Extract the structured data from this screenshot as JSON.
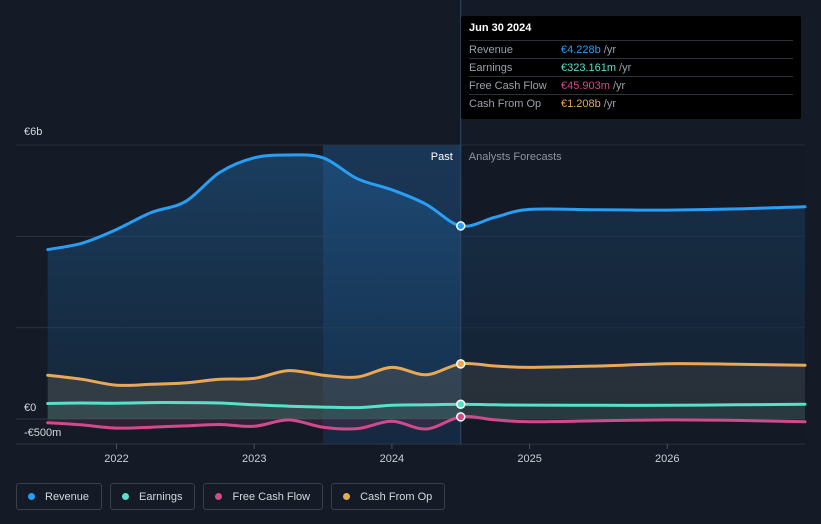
{
  "chart_data": {
    "type": "area",
    "x_ticks": [
      "2022",
      "2023",
      "2024",
      "2025",
      "2026"
    ],
    "y_tick_labels": {
      "top": "€6b",
      "zero": "€0",
      "bottom": "-€500m"
    },
    "ylim": [
      -500,
      6000
    ],
    "unit": "€m",
    "past_label": "Past",
    "forecast_label": "Analysts Forecasts",
    "divider_date": 2024.5,
    "highlight_start": 2023.5,
    "series": [
      {
        "name": "Revenue",
        "color": "#2a9df4",
        "points": [
          [
            2021.5,
            3710
          ],
          [
            2021.75,
            3850
          ],
          [
            2022.0,
            4150
          ],
          [
            2022.25,
            4520
          ],
          [
            2022.5,
            4760
          ],
          [
            2022.75,
            5400
          ],
          [
            2023.0,
            5720
          ],
          [
            2023.25,
            5780
          ],
          [
            2023.5,
            5720
          ],
          [
            2023.75,
            5260
          ],
          [
            2024.0,
            5020
          ],
          [
            2024.25,
            4700
          ],
          [
            2024.5,
            4228
          ],
          [
            2024.75,
            4420
          ],
          [
            2025.0,
            4590
          ],
          [
            2025.5,
            4580
          ],
          [
            2026.0,
            4575
          ],
          [
            2026.5,
            4600
          ],
          [
            2027.0,
            4650
          ]
        ]
      },
      {
        "name": "Cash From Op",
        "color": "#e8a855",
        "points": [
          [
            2021.5,
            960
          ],
          [
            2021.75,
            870
          ],
          [
            2022.0,
            740
          ],
          [
            2022.25,
            760
          ],
          [
            2022.5,
            790
          ],
          [
            2022.75,
            870
          ],
          [
            2023.0,
            890
          ],
          [
            2023.25,
            1060
          ],
          [
            2023.5,
            960
          ],
          [
            2023.75,
            920
          ],
          [
            2024.0,
            1130
          ],
          [
            2024.25,
            970
          ],
          [
            2024.5,
            1208
          ],
          [
            2024.75,
            1160
          ],
          [
            2025.0,
            1130
          ],
          [
            2025.5,
            1160
          ],
          [
            2026.0,
            1210
          ],
          [
            2026.5,
            1200
          ],
          [
            2027.0,
            1175
          ]
        ]
      },
      {
        "name": "Earnings",
        "color": "#58e1c8",
        "points": [
          [
            2021.5,
            340
          ],
          [
            2021.75,
            350
          ],
          [
            2022.0,
            345
          ],
          [
            2022.25,
            360
          ],
          [
            2022.5,
            360
          ],
          [
            2022.75,
            350
          ],
          [
            2023.0,
            310
          ],
          [
            2023.25,
            280
          ],
          [
            2023.5,
            260
          ],
          [
            2023.75,
            250
          ],
          [
            2024.0,
            300
          ],
          [
            2024.25,
            310
          ],
          [
            2024.5,
            323
          ],
          [
            2024.75,
            310
          ],
          [
            2025.0,
            305
          ],
          [
            2025.5,
            300
          ],
          [
            2026.0,
            300
          ],
          [
            2026.5,
            310
          ],
          [
            2027.0,
            325
          ]
        ]
      },
      {
        "name": "Free Cash Flow",
        "color": "#d14a8b",
        "points": [
          [
            2021.5,
            -80
          ],
          [
            2021.75,
            -130
          ],
          [
            2022.0,
            -200
          ],
          [
            2022.25,
            -180
          ],
          [
            2022.5,
            -150
          ],
          [
            2022.75,
            -120
          ],
          [
            2023.0,
            -160
          ],
          [
            2023.25,
            -20
          ],
          [
            2023.5,
            -180
          ],
          [
            2023.75,
            -210
          ],
          [
            2024.0,
            -50
          ],
          [
            2024.25,
            -220
          ],
          [
            2024.5,
            46
          ],
          [
            2024.75,
            -20
          ],
          [
            2025.0,
            -60
          ],
          [
            2025.5,
            -40
          ],
          [
            2026.0,
            -20
          ],
          [
            2026.5,
            -30
          ],
          [
            2027.0,
            -60
          ]
        ]
      }
    ]
  },
  "tooltip": {
    "date": "Jun 30 2024",
    "rows": [
      {
        "label": "Revenue",
        "value": "€4.228b",
        "unit": "/yr",
        "color": "#2a9df4"
      },
      {
        "label": "Earnings",
        "value": "€323.161m",
        "unit": "/yr",
        "color": "#58e1c8"
      },
      {
        "label": "Free Cash Flow",
        "value": "€45.903m",
        "unit": "/yr",
        "color": "#d14a8b"
      },
      {
        "label": "Cash From Op",
        "value": "€1.208b",
        "unit": "/yr",
        "color": "#e8a855"
      }
    ]
  },
  "legend": [
    {
      "label": "Revenue",
      "color": "#2a9df4"
    },
    {
      "label": "Earnings",
      "color": "#58e1c8"
    },
    {
      "label": "Free Cash Flow",
      "color": "#d14a8b"
    },
    {
      "label": "Cash From Op",
      "color": "#e8a855"
    }
  ]
}
